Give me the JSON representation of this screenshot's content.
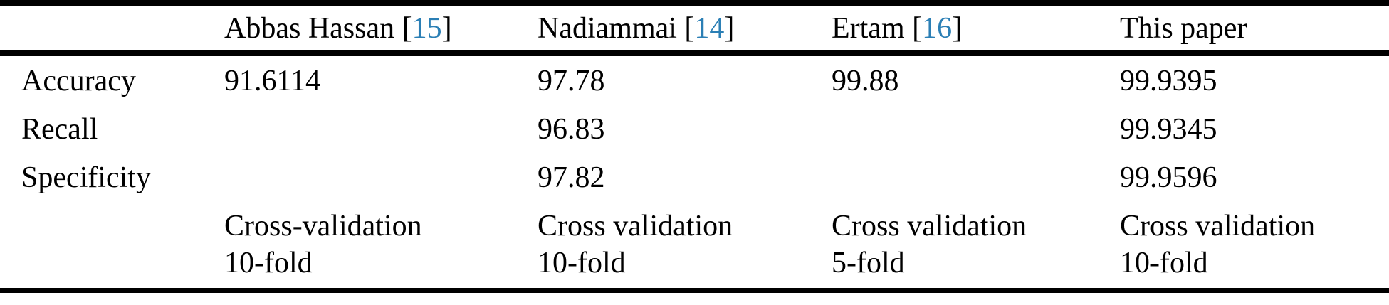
{
  "colors": {
    "text": "#000000",
    "citation_blue": "#2b7fb5",
    "rule": "#000000",
    "background": "#ffffff"
  },
  "table": {
    "header": {
      "cells": [
        {
          "prefix": "",
          "citation": "",
          "suffix": ""
        },
        {
          "prefix": "Abbas Hassan [",
          "citation": "15",
          "suffix": "]"
        },
        {
          "prefix": "Nadiammai [",
          "citation": "14",
          "suffix": "]"
        },
        {
          "prefix": "Ertam [",
          "citation": "16",
          "suffix": "]"
        },
        {
          "prefix": "This paper",
          "citation": "",
          "suffix": ""
        }
      ]
    },
    "metric_rows": [
      {
        "label": "Accuracy",
        "values": [
          "91.6114",
          "97.78",
          "99.88",
          "99.9395"
        ]
      },
      {
        "label": "Recall",
        "values": [
          "",
          "96.83",
          "",
          "99.9345"
        ]
      },
      {
        "label": "Specificity",
        "values": [
          "",
          "97.82",
          "",
          "99.9596"
        ]
      }
    ],
    "method_row": {
      "label": "",
      "cells": [
        {
          "line1": "Cross-validation",
          "line2": "10-fold"
        },
        {
          "line1": "Cross validation",
          "line2": "10-fold"
        },
        {
          "line1": "Cross validation",
          "line2": "5-fold"
        },
        {
          "line1": "Cross validation",
          "line2": "10-fold"
        }
      ]
    }
  }
}
